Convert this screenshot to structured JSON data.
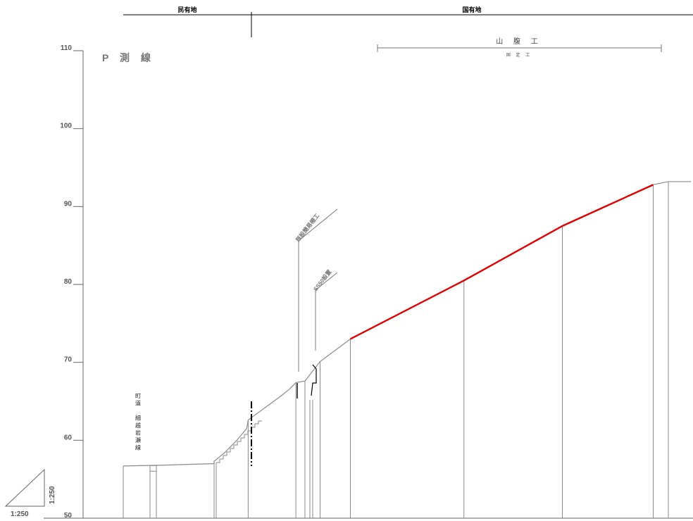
{
  "ownership": {
    "private_label": "民有地",
    "national_label": "国有地"
  },
  "title": "P 測 線",
  "elevation_axis": {
    "ticks": [
      110,
      100,
      90,
      80,
      70,
      60,
      50
    ]
  },
  "road_label": [
    "町",
    "道",
    "",
    "細",
    "越",
    "岩",
    "瀬",
    "線"
  ],
  "annotations": {
    "upper": "既設簡易柵工",
    "lower": "SS50設置"
  },
  "works": {
    "name": "山 腹 工",
    "sub": "固 定 工"
  },
  "scale": {
    "horizontal": "1:250",
    "vertical": "1:250"
  },
  "colors": {
    "ground_line": "#8a8a8a",
    "slope_works": "#e00000",
    "axis": "#555555"
  },
  "chart_data": {
    "type": "profile",
    "y_unit": "elevation",
    "ylim": [
      50,
      110
    ],
    "ground_profile": [
      [
        0,
        56.7
      ],
      [
        5,
        56.8
      ],
      [
        12,
        57.0
      ],
      [
        12,
        57.3
      ],
      [
        13.5,
        58.5
      ],
      [
        15,
        60.0
      ],
      [
        16.3,
        61.5
      ],
      [
        16.5,
        62.6
      ],
      [
        21,
        65.8
      ],
      [
        22,
        66.6
      ],
      [
        22.8,
        67.4
      ],
      [
        24,
        67.6
      ],
      [
        26,
        70.1
      ],
      [
        30,
        73.0
      ],
      [
        45,
        80.5
      ],
      [
        58,
        87.5
      ],
      [
        70,
        92.8
      ],
      [
        72,
        93.2
      ],
      [
        75,
        93.2
      ]
    ],
    "slope_works_range": [
      30,
      70
    ]
  }
}
